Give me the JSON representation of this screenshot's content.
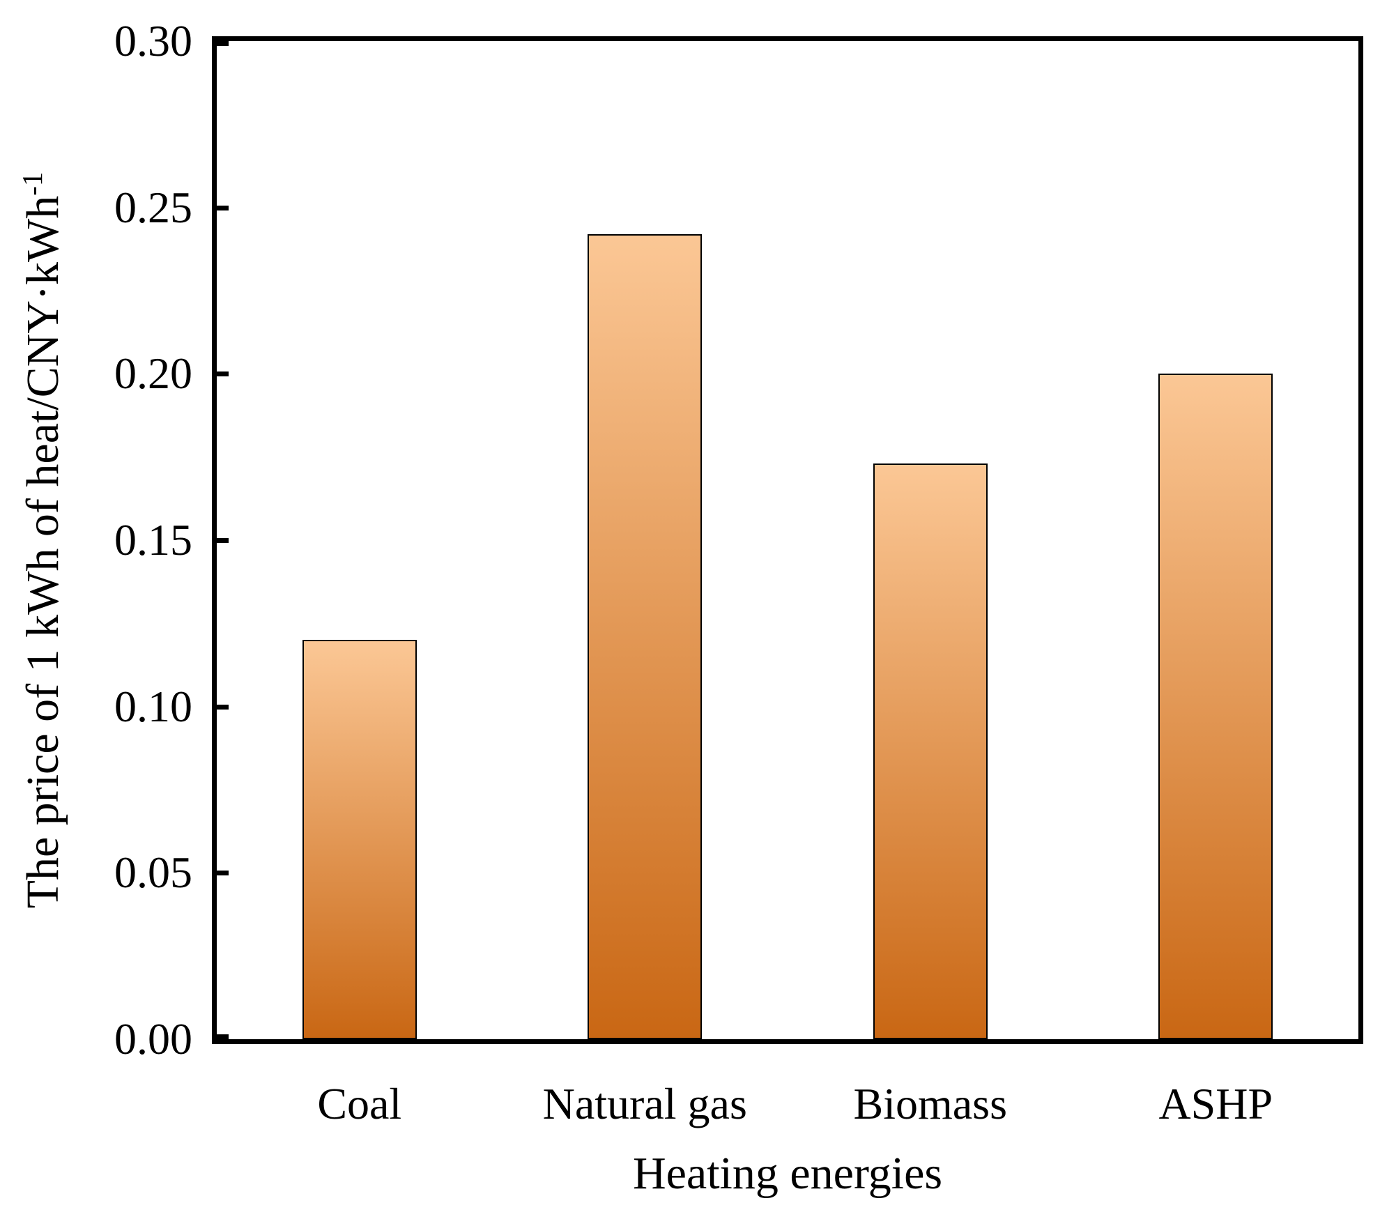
{
  "chart_data": {
    "type": "bar",
    "title": "",
    "categories": [
      "Coal",
      "Natural gas",
      "Biomass",
      "ASHP"
    ],
    "values": [
      0.12,
      0.242,
      0.173,
      0.2
    ],
    "xlabel": "Heating energies",
    "ylabel_main": "The price of 1 kWh of heat/CNY·kWh",
    "ylabel_sup": "-1",
    "ylim": [
      0,
      0.3
    ],
    "yticks": [
      0.0,
      0.05,
      0.1,
      0.15,
      0.2,
      0.25,
      0.3
    ],
    "ytick_labels": [
      "0.00",
      "0.05",
      "0.10",
      "0.15",
      "0.20",
      "0.25",
      "0.30"
    ],
    "grid": false,
    "legend": null,
    "layout": {
      "tick_direction": "in",
      "ticks_on": "left-axis-only"
    },
    "colors": {
      "bar_gradient_top": "#FBC795",
      "bar_gradient_bottom": "#C96714",
      "bar_border": "#000000",
      "axis": "#000000",
      "text": "#000000",
      "background": "#ffffff"
    }
  }
}
